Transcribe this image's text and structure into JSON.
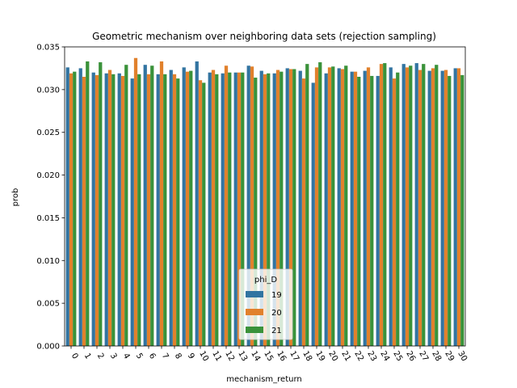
{
  "chart_data": {
    "type": "bar",
    "title": "Geometric mechanism over neighboring data sets (rejection sampling)",
    "xlabel": "mechanism_return",
    "ylabel": "prob",
    "ylim": [
      0,
      0.035
    ],
    "yticks": [
      "0.000",
      "0.005",
      "0.010",
      "0.015",
      "0.020",
      "0.025",
      "0.030",
      "0.035"
    ],
    "categories": [
      "0",
      "1",
      "2",
      "3",
      "4",
      "5",
      "6",
      "7",
      "8",
      "9",
      "10",
      "11",
      "12",
      "13",
      "14",
      "15",
      "16",
      "17",
      "18",
      "19",
      "20",
      "21",
      "22",
      "23",
      "24",
      "25",
      "26",
      "27",
      "28",
      "29",
      "30"
    ],
    "legend": {
      "title": "phi_D",
      "placement": "lower-center"
    },
    "series": [
      {
        "name": "19",
        "color": "#3274a1",
        "values": [
          0.0326,
          0.0325,
          0.032,
          0.0319,
          0.0319,
          0.0313,
          0.0329,
          0.0318,
          0.0323,
          0.0326,
          0.0333,
          0.032,
          0.0319,
          0.032,
          0.0328,
          0.0322,
          0.0319,
          0.0325,
          0.0322,
          0.0308,
          0.0319,
          0.0325,
          0.0321,
          0.0322,
          0.0316,
          0.0326,
          0.033,
          0.0331,
          0.0322,
          0.0322,
          0.0325
        ]
      },
      {
        "name": "20",
        "color": "#e1812c",
        "values": [
          0.0319,
          0.0315,
          0.0317,
          0.0323,
          0.0316,
          0.0337,
          0.0318,
          0.0333,
          0.0318,
          0.0321,
          0.0311,
          0.0323,
          0.0328,
          0.032,
          0.0327,
          0.0318,
          0.0323,
          0.0324,
          0.0313,
          0.0326,
          0.0326,
          0.0324,
          0.0321,
          0.0326,
          0.033,
          0.0313,
          0.0326,
          0.0323,
          0.0325,
          0.0323,
          0.0325
        ]
      },
      {
        "name": "21",
        "color": "#3a923a",
        "values": [
          0.0321,
          0.0333,
          0.0332,
          0.0318,
          0.0329,
          0.0318,
          0.0328,
          0.0318,
          0.0313,
          0.0322,
          0.0308,
          0.0318,
          0.032,
          0.032,
          0.0314,
          0.0319,
          0.0321,
          0.0324,
          0.033,
          0.0332,
          0.0327,
          0.0328,
          0.0315,
          0.0316,
          0.0331,
          0.032,
          0.0328,
          0.033,
          0.0329,
          0.0316,
          0.0317
        ]
      }
    ]
  }
}
